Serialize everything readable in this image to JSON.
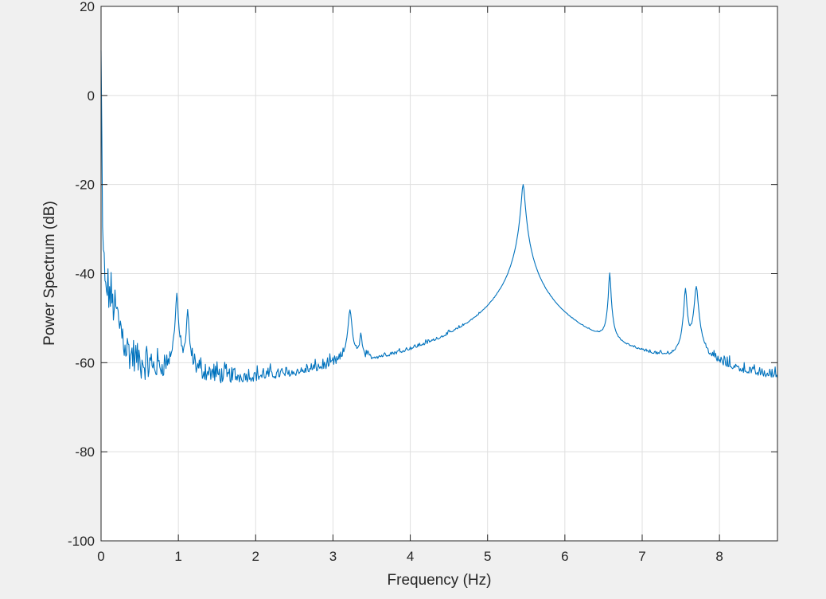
{
  "colors": {
    "figure_bg": "#f0f0f0",
    "axes_bg": "#ffffff",
    "axes_edge": "#262626",
    "grid": "#dfdfdf",
    "line": "#0072bd"
  },
  "chart_data": {
    "type": "line",
    "title": "",
    "xlabel": "Frequency (Hz)",
    "ylabel": "Power Spectrum (dB)",
    "xlim": [
      0,
      8.75
    ],
    "ylim": [
      -100,
      20
    ],
    "xticks": [
      0,
      1,
      2,
      3,
      4,
      5,
      6,
      7,
      8
    ],
    "xtick_labels": [
      "0",
      "1",
      "2",
      "3",
      "4",
      "5",
      "6",
      "7",
      "8"
    ],
    "yticks": [
      -100,
      -80,
      -60,
      -40,
      -20,
      0,
      20
    ],
    "ytick_labels": [
      "-100",
      "-80",
      "-60",
      "-40",
      "-20",
      "0",
      "20"
    ],
    "grid": true,
    "legend": "none",
    "series": [
      {
        "noise_floor": [
          [
            0.0,
            10
          ],
          [
            0.02,
            -30
          ],
          [
            0.05,
            -43
          ],
          [
            0.1,
            -44
          ],
          [
            0.15,
            -46
          ],
          [
            0.25,
            -52
          ],
          [
            0.35,
            -58
          ],
          [
            0.5,
            -61
          ],
          [
            0.8,
            -63
          ],
          [
            1.2,
            -64
          ],
          [
            1.6,
            -67
          ],
          [
            2.0,
            -68
          ],
          [
            2.5,
            -69
          ],
          [
            3.0,
            -67
          ],
          [
            3.5,
            -67
          ],
          [
            4.0,
            -67
          ],
          [
            4.5,
            -66
          ],
          [
            5.0,
            -64
          ],
          [
            5.3,
            -60
          ],
          [
            5.6,
            -62
          ],
          [
            5.8,
            -64
          ],
          [
            6.0,
            -69
          ],
          [
            6.4,
            -71
          ],
          [
            6.8,
            -70
          ],
          [
            7.2,
            -70
          ],
          [
            7.5,
            -68
          ],
          [
            7.9,
            -66
          ],
          [
            8.2,
            -68
          ],
          [
            8.5,
            -70
          ],
          [
            8.75,
            -69
          ]
        ],
        "peaks": [
          {
            "x": 0.98,
            "y": -44.5,
            "w": 0.012
          },
          {
            "x": 1.12,
            "y": -48.5,
            "w": 0.012
          },
          {
            "x": 3.22,
            "y": -48.5,
            "w": 0.02
          },
          {
            "x": 3.36,
            "y": -55,
            "w": 0.015
          },
          {
            "x": 5.46,
            "y": -20,
            "w": 0.02
          },
          {
            "x": 6.58,
            "y": -40,
            "w": 0.012
          },
          {
            "x": 7.56,
            "y": -43.5,
            "w": 0.015
          },
          {
            "x": 7.7,
            "y": -43,
            "w": 0.02
          }
        ],
        "x_step": 0.01,
        "noise_amplitude_db": 4.5
      }
    ]
  }
}
